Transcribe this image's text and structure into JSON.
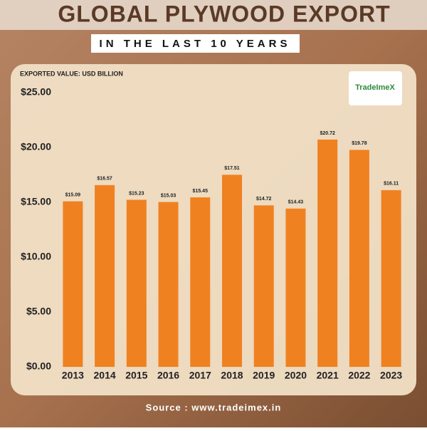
{
  "chart_data": {
    "type": "bar",
    "title": "GLOBAL PLYWOOD EXPORT",
    "subtitle": "IN THE LAST 10 YEARS",
    "y_label": "EXPORTED VALUE: USD BILLION",
    "source": "Source : www.tradeimex.in",
    "logo": "TradeImeX",
    "categories": [
      "2013",
      "2014",
      "2015",
      "2016",
      "2017",
      "2018",
      "2019",
      "2020",
      "2021",
      "2022",
      "2023"
    ],
    "values": [
      15.09,
      16.57,
      15.23,
      15.03,
      15.45,
      17.51,
      14.72,
      14.43,
      20.72,
      19.78,
      16.11
    ],
    "value_labels": [
      "$15.09",
      "$16.57",
      "$15.23",
      "$15.03",
      "$15.45",
      "$17.51",
      "$14.72",
      "$14.43",
      "$20.72",
      "$19.78",
      "$16.11"
    ],
    "color": "#f08121",
    "ylim": [
      0,
      25
    ],
    "yticks": [
      {
        "value": 0,
        "label": "$0.00"
      },
      {
        "value": 5,
        "label": "$5.00"
      },
      {
        "value": 10,
        "label": "$10.00"
      },
      {
        "value": 15,
        "label": "$15.00"
      },
      {
        "value": 20,
        "label": "$20.00"
      },
      {
        "value": 25,
        "label": "$25.00"
      }
    ]
  }
}
